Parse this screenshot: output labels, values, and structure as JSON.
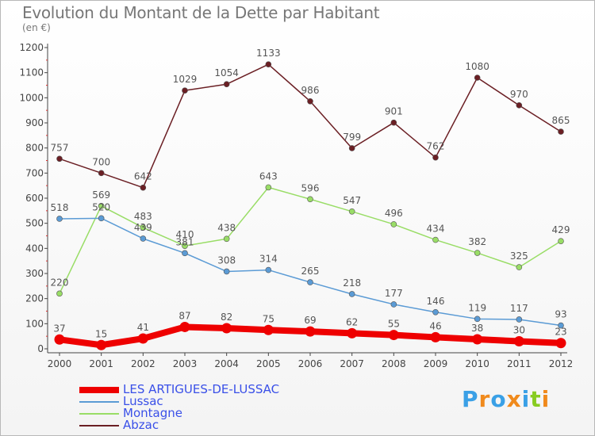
{
  "title": "Evolution du Montant de la Dette par Habitant",
  "subtitle": "(en €)",
  "logo": "Proxiti",
  "chart_data": {
    "type": "line",
    "title": "Evolution du Montant de la Dette par Habitant",
    "unit": "(en €)",
    "categories": [
      "2000",
      "2001",
      "2002",
      "2003",
      "2004",
      "2005",
      "2006",
      "2007",
      "2008",
      "2009",
      "2010",
      "2011",
      "2012"
    ],
    "ylim": [
      0,
      1200
    ],
    "yticks": [
      0,
      100,
      200,
      300,
      400,
      500,
      600,
      700,
      800,
      900,
      1000,
      1100,
      1200
    ],
    "grid": false,
    "legend": "bottom-left",
    "series": [
      {
        "name": "Abzac",
        "color": "#6b1f24",
        "values": [
          757,
          700,
          642,
          1029,
          1054,
          1133,
          986,
          799,
          901,
          762,
          1080,
          970,
          865
        ]
      },
      {
        "name": "Montagne",
        "color": "#99dd66",
        "values": [
          220,
          569,
          483,
          410,
          438,
          643,
          596,
          547,
          496,
          434,
          382,
          325,
          429
        ]
      },
      {
        "name": "Lussac",
        "color": "#5b9bd5",
        "values": [
          518,
          520,
          439,
          381,
          308,
          314,
          265,
          218,
          177,
          146,
          119,
          117,
          93
        ]
      },
      {
        "name": "LES ARTIGUES-DE-LUSSAC",
        "color": "#ee0000",
        "values": [
          37,
          15,
          41,
          87,
          82,
          75,
          69,
          62,
          55,
          46,
          38,
          30,
          23
        ]
      }
    ]
  },
  "legend_items": [
    {
      "label": "LES ARTIGUES-DE-LUSSAC",
      "color": "#ee0000"
    },
    {
      "label": "Lussac",
      "color": "#5b9bd5"
    },
    {
      "label": "Montagne",
      "color": "#99dd66"
    },
    {
      "label": "Abzac",
      "color": "#6b1f24"
    }
  ]
}
